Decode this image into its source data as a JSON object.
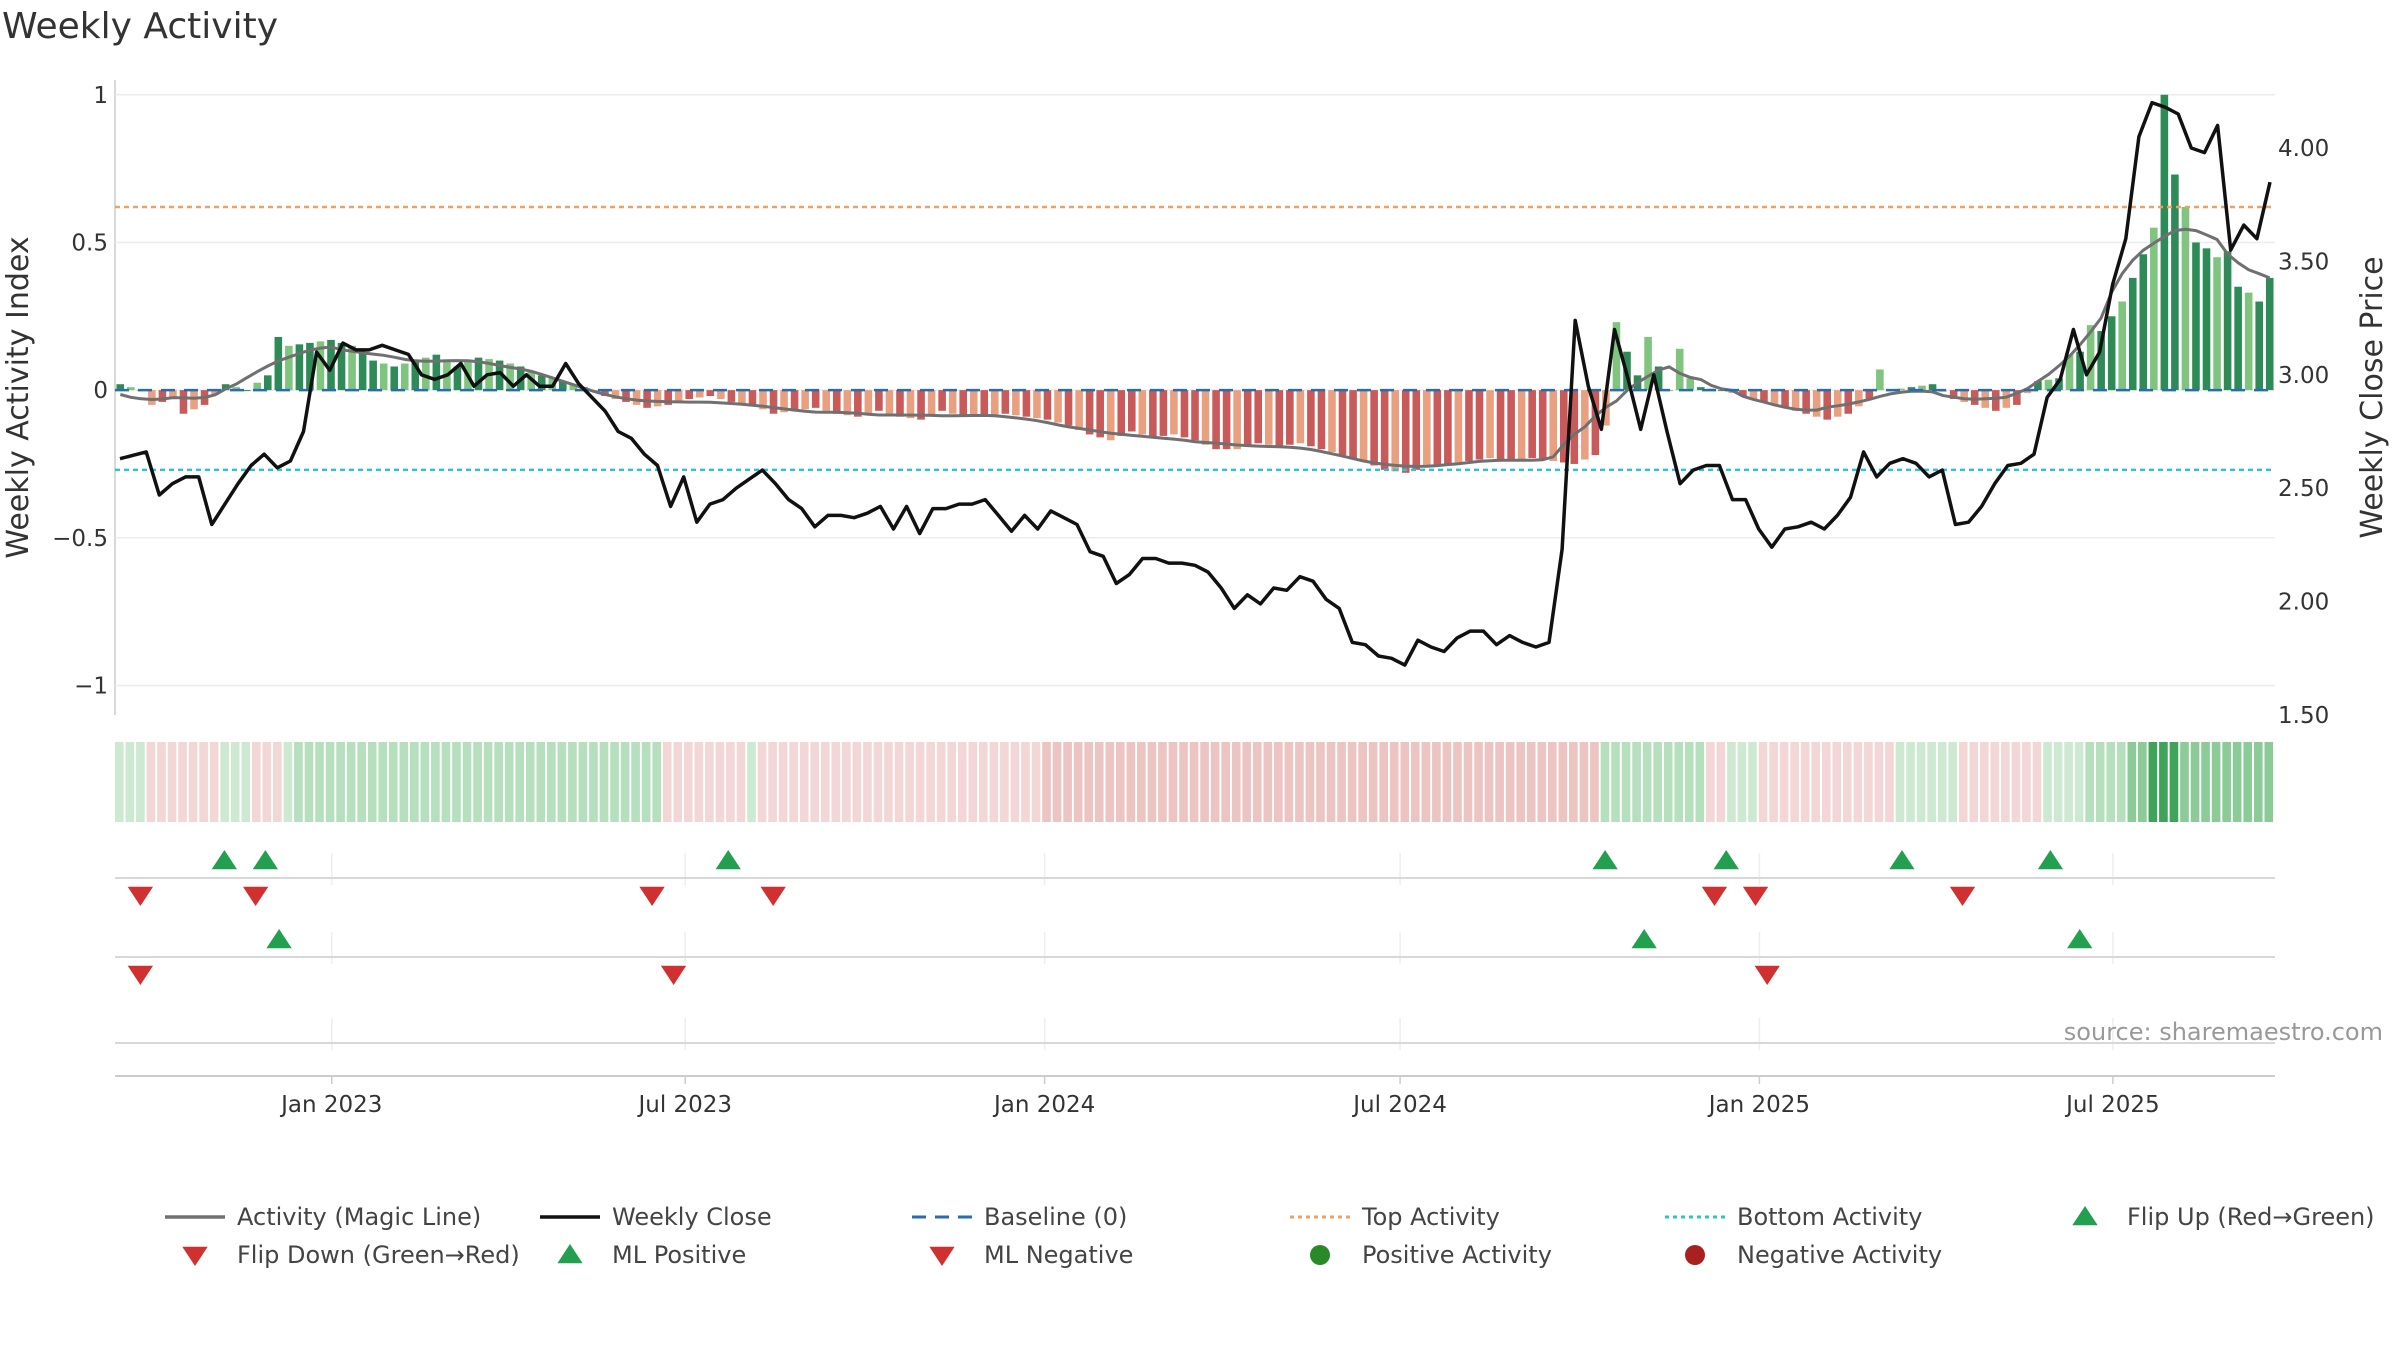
{
  "title": "Weekly Activity",
  "source": "source: sharemaestro.com",
  "colors": {
    "pos_strong": "#2e8b57",
    "pos_light": "#7fc47f",
    "neg_strong": "#c85a5a",
    "neg_light": "#e8a080",
    "magic_line": "#707070",
    "close": "#111111",
    "baseline": "#2b6cb0",
    "top": "#f0a060",
    "bottom": "#30c0d8",
    "marker_up": "#22a050",
    "marker_down": "#d03030",
    "pos_dot": "#2a8a2a",
    "neg_dot": "#a82020"
  },
  "chart_data": {
    "type": "bar",
    "title": "Weekly Activity",
    "ylabel": "Weekly Activity Index",
    "y2label": "Weekly Close Price",
    "ylim": [
      -1.1,
      1.05
    ],
    "y2lim": [
      1.5,
      4.3
    ],
    "y_ticks": [
      1,
      0.5,
      0,
      -0.5,
      -1
    ],
    "y_tick_labels": [
      "1",
      "0.5",
      "0",
      "−0.5",
      "−1"
    ],
    "y2_ticks": [
      4.0,
      3.5,
      3.0,
      2.5,
      2.0,
      1.5
    ],
    "y2_tick_labels": [
      "4.00",
      "3.50",
      "3.00",
      "2.50",
      "2.00",
      "1.50"
    ],
    "x_start": "2022-09-12",
    "x_end": "2025-09-22",
    "x_ticks": [
      "2023-01-01",
      "2023-07-01",
      "2024-01-01",
      "2024-07-01",
      "2025-01-01",
      "2025-07-01"
    ],
    "x_tick_labels": [
      "Jan 2023",
      "Jul 2023",
      "Jan 2024",
      "Jul 2024",
      "Jan 2025",
      "Jul 2025"
    ],
    "top_activity": 0.62,
    "bottom_activity": -0.27,
    "baseline": 0,
    "activity_keyframes": [
      [
        0,
        0.02
      ],
      [
        2,
        0.0
      ],
      [
        3,
        -0.05
      ],
      [
        5,
        -0.03
      ],
      [
        6,
        -0.08
      ],
      [
        8,
        -0.05
      ],
      [
        10,
        0.02
      ],
      [
        12,
        0.0
      ],
      [
        14,
        0.05
      ],
      [
        15,
        0.18
      ],
      [
        16,
        0.15
      ],
      [
        18,
        0.16
      ],
      [
        20,
        0.17
      ],
      [
        22,
        0.15
      ],
      [
        24,
        0.1
      ],
      [
        26,
        0.08
      ],
      [
        28,
        0.1
      ],
      [
        30,
        0.12
      ],
      [
        32,
        0.08
      ],
      [
        34,
        0.11
      ],
      [
        36,
        0.1
      ],
      [
        38,
        0.08
      ],
      [
        40,
        0.05
      ],
      [
        42,
        0.03
      ],
      [
        44,
        0.01
      ],
      [
        46,
        -0.02
      ],
      [
        48,
        -0.04
      ],
      [
        50,
        -0.06
      ],
      [
        52,
        -0.05
      ],
      [
        54,
        -0.03
      ],
      [
        56,
        -0.02
      ],
      [
        58,
        -0.04
      ],
      [
        60,
        -0.05
      ],
      [
        62,
        -0.08
      ],
      [
        64,
        -0.07
      ],
      [
        66,
        -0.06
      ],
      [
        68,
        -0.08
      ],
      [
        70,
        -0.09
      ],
      [
        72,
        -0.07
      ],
      [
        74,
        -0.09
      ],
      [
        76,
        -0.1
      ],
      [
        78,
        -0.07
      ],
      [
        80,
        -0.09
      ],
      [
        82,
        -0.09
      ],
      [
        84,
        -0.08
      ],
      [
        86,
        -0.09
      ],
      [
        88,
        -0.1
      ],
      [
        90,
        -0.12
      ],
      [
        92,
        -0.15
      ],
      [
        94,
        -0.17
      ],
      [
        96,
        -0.14
      ],
      [
        98,
        -0.16
      ],
      [
        100,
        -0.15
      ],
      [
        102,
        -0.17
      ],
      [
        104,
        -0.2
      ],
      [
        106,
        -0.2
      ],
      [
        108,
        -0.18
      ],
      [
        110,
        -0.19
      ],
      [
        112,
        -0.18
      ],
      [
        114,
        -0.2
      ],
      [
        116,
        -0.22
      ],
      [
        118,
        -0.24
      ],
      [
        120,
        -0.27
      ],
      [
        122,
        -0.28
      ],
      [
        124,
        -0.26
      ],
      [
        126,
        -0.25
      ],
      [
        128,
        -0.24
      ],
      [
        130,
        -0.23
      ],
      [
        132,
        -0.24
      ],
      [
        134,
        -0.23
      ],
      [
        136,
        -0.24
      ],
      [
        138,
        -0.25
      ],
      [
        140,
        -0.22
      ],
      [
        141,
        -0.12
      ],
      [
        142,
        0.23
      ],
      [
        143,
        0.13
      ],
      [
        144,
        0.05
      ],
      [
        145,
        0.18
      ],
      [
        146,
        0.08
      ],
      [
        147,
        0.0
      ],
      [
        148,
        0.14
      ],
      [
        149,
        0.04
      ],
      [
        150,
        0.01
      ],
      [
        152,
        0.0
      ],
      [
        154,
        -0.02
      ],
      [
        156,
        -0.04
      ],
      [
        158,
        -0.06
      ],
      [
        160,
        -0.08
      ],
      [
        162,
        -0.1
      ],
      [
        164,
        -0.08
      ],
      [
        166,
        -0.03
      ],
      [
        167,
        0.07
      ],
      [
        168,
        0.0
      ],
      [
        170,
        0.01
      ],
      [
        172,
        0.02
      ],
      [
        174,
        -0.03
      ],
      [
        176,
        -0.05
      ],
      [
        178,
        -0.07
      ],
      [
        180,
        -0.05
      ],
      [
        182,
        0.03
      ],
      [
        184,
        0.04
      ],
      [
        185,
        0.12
      ],
      [
        186,
        0.13
      ],
      [
        187,
        0.22
      ],
      [
        188,
        0.2
      ],
      [
        189,
        0.25
      ],
      [
        190,
        0.3
      ],
      [
        191,
        0.38
      ],
      [
        192,
        0.46
      ],
      [
        193,
        0.55
      ],
      [
        194,
        1.0
      ],
      [
        195,
        0.73
      ],
      [
        196,
        0.62
      ],
      [
        197,
        0.5
      ],
      [
        198,
        0.48
      ],
      [
        199,
        0.45
      ],
      [
        200,
        0.47
      ],
      [
        201,
        0.35
      ],
      [
        202,
        0.33
      ],
      [
        203,
        0.3
      ],
      [
        204,
        0.38
      ]
    ],
    "close_keyframes": [
      [
        0,
        2.63
      ],
      [
        2,
        2.66
      ],
      [
        3,
        2.47
      ],
      [
        4,
        2.52
      ],
      [
        5,
        2.55
      ],
      [
        6,
        2.55
      ],
      [
        7,
        2.34
      ],
      [
        9,
        2.52
      ],
      [
        10,
        2.6
      ],
      [
        11,
        2.65
      ],
      [
        12,
        2.59
      ],
      [
        13,
        2.62
      ],
      [
        14,
        2.75
      ],
      [
        15,
        3.1
      ],
      [
        16,
        3.02
      ],
      [
        17,
        3.14
      ],
      [
        18,
        3.11
      ],
      [
        19,
        3.11
      ],
      [
        20,
        3.13
      ],
      [
        21,
        3.11
      ],
      [
        22,
        3.09
      ],
      [
        23,
        3.0
      ],
      [
        24,
        2.98
      ],
      [
        25,
        3.0
      ],
      [
        26,
        3.05
      ],
      [
        27,
        2.95
      ],
      [
        28,
        3.0
      ],
      [
        29,
        3.01
      ],
      [
        30,
        2.95
      ],
      [
        31,
        3.0
      ],
      [
        32,
        2.95
      ],
      [
        33,
        2.95
      ],
      [
        34,
        3.05
      ],
      [
        35,
        2.96
      ],
      [
        36,
        2.9
      ],
      [
        37,
        2.84
      ],
      [
        38,
        2.75
      ],
      [
        39,
        2.72
      ],
      [
        40,
        2.65
      ],
      [
        41,
        2.6
      ],
      [
        42,
        2.42
      ],
      [
        43,
        2.55
      ],
      [
        44,
        2.35
      ],
      [
        45,
        2.43
      ],
      [
        46,
        2.45
      ],
      [
        47,
        2.5
      ],
      [
        48,
        2.54
      ],
      [
        49,
        2.58
      ],
      [
        50,
        2.52
      ],
      [
        51,
        2.45
      ],
      [
        52,
        2.41
      ],
      [
        53,
        2.33
      ],
      [
        54,
        2.38
      ],
      [
        55,
        2.38
      ],
      [
        56,
        2.37
      ],
      [
        57,
        2.39
      ],
      [
        58,
        2.42
      ],
      [
        59,
        2.32
      ],
      [
        60,
        2.42
      ],
      [
        61,
        2.3
      ],
      [
        62,
        2.41
      ],
      [
        63,
        2.41
      ],
      [
        64,
        2.43
      ],
      [
        65,
        2.43
      ],
      [
        66,
        2.45
      ],
      [
        67,
        2.38
      ],
      [
        68,
        2.31
      ],
      [
        69,
        2.38
      ],
      [
        70,
        2.32
      ],
      [
        71,
        2.4
      ],
      [
        72,
        2.37
      ],
      [
        73,
        2.34
      ],
      [
        74,
        2.22
      ],
      [
        75,
        2.2
      ],
      [
        76,
        2.08
      ],
      [
        77,
        2.12
      ],
      [
        78,
        2.19
      ],
      [
        79,
        2.19
      ],
      [
        80,
        2.17
      ],
      [
        81,
        2.17
      ],
      [
        82,
        2.16
      ],
      [
        83,
        2.13
      ],
      [
        84,
        2.06
      ],
      [
        85,
        1.97
      ],
      [
        86,
        2.03
      ],
      [
        87,
        1.99
      ],
      [
        88,
        2.06
      ],
      [
        89,
        2.05
      ],
      [
        90,
        2.11
      ],
      [
        91,
        2.09
      ],
      [
        92,
        2.01
      ],
      [
        93,
        1.97
      ],
      [
        94,
        1.82
      ],
      [
        95,
        1.81
      ],
      [
        96,
        1.76
      ],
      [
        97,
        1.75
      ],
      [
        98,
        1.72
      ],
      [
        99,
        1.83
      ],
      [
        100,
        1.8
      ],
      [
        101,
        1.78
      ],
      [
        102,
        1.84
      ],
      [
        103,
        1.87
      ],
      [
        104,
        1.87
      ],
      [
        105,
        1.81
      ],
      [
        106,
        1.85
      ],
      [
        107,
        1.82
      ],
      [
        108,
        1.8
      ],
      [
        109,
        1.82
      ],
      [
        110,
        2.23
      ],
      [
        111,
        3.24
      ],
      [
        112,
        2.95
      ],
      [
        113,
        2.76
      ],
      [
        114,
        3.2
      ],
      [
        115,
        2.99
      ],
      [
        116,
        2.76
      ],
      [
        117,
        3.0
      ],
      [
        118,
        2.75
      ],
      [
        119,
        2.52
      ],
      [
        120,
        2.58
      ],
      [
        121,
        2.6
      ],
      [
        122,
        2.6
      ],
      [
        123,
        2.45
      ],
      [
        124,
        2.45
      ],
      [
        125,
        2.32
      ],
      [
        126,
        2.24
      ],
      [
        127,
        2.32
      ],
      [
        128,
        2.33
      ],
      [
        129,
        2.35
      ],
      [
        130,
        2.32
      ],
      [
        131,
        2.38
      ],
      [
        132,
        2.46
      ],
      [
        133,
        2.66
      ],
      [
        134,
        2.55
      ],
      [
        135,
        2.61
      ],
      [
        136,
        2.63
      ],
      [
        137,
        2.61
      ],
      [
        138,
        2.55
      ],
      [
        139,
        2.58
      ],
      [
        140,
        2.34
      ],
      [
        141,
        2.35
      ],
      [
        142,
        2.42
      ],
      [
        143,
        2.52
      ],
      [
        144,
        2.6
      ],
      [
        145,
        2.61
      ],
      [
        146,
        2.65
      ],
      [
        147,
        2.9
      ],
      [
        148,
        2.98
      ],
      [
        149,
        3.2
      ],
      [
        150,
        3.0
      ],
      [
        151,
        3.1
      ],
      [
        152,
        3.4
      ],
      [
        153,
        3.6
      ],
      [
        154,
        4.05
      ],
      [
        155,
        4.2
      ],
      [
        156,
        4.18
      ],
      [
        157,
        4.15
      ],
      [
        158,
        4.0
      ],
      [
        159,
        3.98
      ],
      [
        160,
        4.1
      ],
      [
        161,
        3.55
      ],
      [
        162,
        3.66
      ],
      [
        163,
        3.6
      ],
      [
        164,
        3.85
      ]
    ],
    "close_weeks": 165,
    "band": [
      [
        "2022-09-12",
        "g1"
      ],
      [
        "2022-09-26",
        "r1"
      ],
      [
        "2022-11-07",
        "g1"
      ],
      [
        "2022-11-21",
        "r1"
      ],
      [
        "2022-12-05",
        "g1"
      ],
      [
        "2022-12-12",
        "g2"
      ],
      [
        "2023-06-19",
        "r1"
      ],
      [
        "2023-07-31",
        "g1"
      ],
      [
        "2023-08-07",
        "r1"
      ],
      [
        "2024-01-01",
        "r2"
      ],
      [
        "2024-10-14",
        "g2"
      ],
      [
        "2024-12-02",
        "r1"
      ],
      [
        "2024-12-16",
        "g1"
      ],
      [
        "2024-12-30",
        "r1"
      ],
      [
        "2025-03-10",
        "g1"
      ],
      [
        "2025-04-14",
        "r1"
      ],
      [
        "2025-05-26",
        "g1"
      ],
      [
        "2025-06-16",
        "g2"
      ],
      [
        "2025-07-07",
        "g3"
      ],
      [
        "2025-07-21",
        "g4"
      ],
      [
        "2025-08-04",
        "g3"
      ]
    ],
    "marker_rows": [
      {
        "up": [
          "2022-11-07",
          "2022-11-28",
          "2023-07-23",
          "2024-10-14",
          "2024-12-15",
          "2025-03-15",
          "2025-05-30"
        ],
        "down": [
          "2022-09-25",
          "2022-11-23",
          "2023-06-14",
          "2023-08-15",
          "2024-12-09",
          "2024-12-30",
          "2025-04-15"
        ]
      },
      {
        "up": [
          "2022-12-05",
          "2024-11-03",
          "2025-06-14"
        ],
        "down": [
          "2022-09-25",
          "2023-06-25",
          "2025-01-05"
        ]
      },
      {
        "up": [],
        "down": []
      }
    ]
  },
  "legend": [
    {
      "label": "Activity (Magic Line)",
      "icon": "solid-line-icon",
      "color": "#707070"
    },
    {
      "label": "Weekly Close",
      "icon": "solid-line-icon",
      "color": "#111111"
    },
    {
      "label": "Baseline (0)",
      "icon": "dashed-line-icon",
      "color": "#2b6cb0"
    },
    {
      "label": "Top Activity",
      "icon": "dotted-line-icon",
      "color": "#f0a060"
    },
    {
      "label": "Bottom Activity",
      "icon": "dotted-line-icon",
      "color": "#30c0d8"
    },
    {
      "label": "Flip Up (Red→Green)",
      "icon": "triangle-up-icon",
      "color": "#22a050"
    },
    {
      "label": "Flip Down (Green→Red)",
      "icon": "triangle-down-icon",
      "color": "#d03030"
    },
    {
      "label": "ML Positive",
      "icon": "triangle-up-icon",
      "color": "#22a050"
    },
    {
      "label": "ML Negative",
      "icon": "triangle-down-icon",
      "color": "#d03030"
    },
    {
      "label": "Positive Activity",
      "icon": "circle-icon",
      "color": "#2a8a2a"
    },
    {
      "label": "Negative Activity",
      "icon": "circle-icon",
      "color": "#a82020"
    }
  ]
}
